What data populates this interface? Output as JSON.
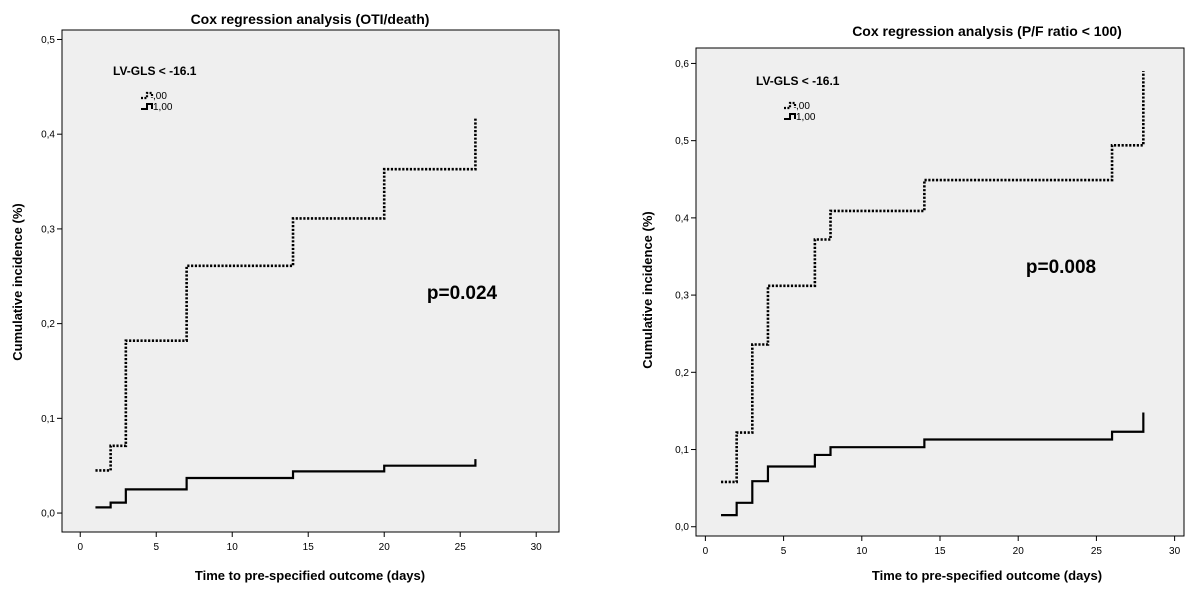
{
  "chart_data": [
    {
      "type": "line",
      "title": "Cox regression analysis (OTI/death)",
      "xlabel": "Time to pre-specified outcome (days)",
      "ylabel": "Cumulative incidence (%)",
      "xlim": [
        -1.2,
        31.5
      ],
      "ylim": [
        -0.02,
        0.51
      ],
      "x_ticks": [
        0,
        5,
        10,
        15,
        20,
        25,
        30
      ],
      "y_ticks": [
        0.0,
        0.1,
        0.2,
        0.3,
        0.4,
        0.5
      ],
      "x_tick_labels": [
        "0",
        "5",
        "10",
        "15",
        "20",
        "25",
        "30"
      ],
      "y_tick_labels": [
        "0,0",
        "0,1",
        "0,2",
        "0,3",
        "0,4",
        "0,5"
      ],
      "grid": false,
      "legend": {
        "title": "LV-GLS < -16.1",
        "position": "top-left",
        "entries": [
          ",00",
          "1,00"
        ]
      },
      "annotation": "p=0.024",
      "series": [
        {
          "name": ",00",
          "style": "dotted",
          "x": [
            1,
            2,
            2.4,
            3,
            7,
            14,
            20,
            26
          ],
          "y": [
            0.045,
            0.071,
            0.071,
            0.182,
            0.261,
            0.311,
            0.363,
            0.418
          ]
        },
        {
          "name": "1,00",
          "style": "solid",
          "x": [
            1,
            2,
            3,
            7,
            14,
            20,
            26
          ],
          "y": [
            0.006,
            0.011,
            0.025,
            0.037,
            0.044,
            0.05,
            0.057
          ]
        }
      ]
    },
    {
      "type": "line",
      "title": "Cox regression analysis (P/F ratio < 100)",
      "xlabel": "Time to pre-specified outcome (days)",
      "ylabel": "Cumulative incidence (%)",
      "xlim": [
        -0.6,
        30.6
      ],
      "ylim": [
        -0.012,
        0.62
      ],
      "x_ticks": [
        0,
        5,
        10,
        15,
        20,
        25,
        30
      ],
      "y_ticks": [
        0.0,
        0.1,
        0.2,
        0.3,
        0.4,
        0.5,
        0.6
      ],
      "x_tick_labels": [
        "0",
        "5",
        "10",
        "15",
        "20",
        "25",
        "30"
      ],
      "y_tick_labels": [
        "0,0",
        "0,1",
        "0,2",
        "0,3",
        "0,4",
        "0,5",
        "0,6"
      ],
      "grid": false,
      "legend": {
        "title": "LV-GLS < -16.1",
        "position": "top-left",
        "entries": [
          ",00",
          "1,00"
        ]
      },
      "annotation": "p=0.008",
      "series": [
        {
          "name": ",00",
          "style": "dotted",
          "x": [
            1,
            2,
            3,
            3.5,
            4,
            7,
            7.5,
            8,
            14,
            26,
            28
          ],
          "y": [
            0.058,
            0.122,
            0.236,
            0.236,
            0.312,
            0.372,
            0.372,
            0.409,
            0.449,
            0.494,
            0.59
          ]
        },
        {
          "name": "1,00",
          "style": "solid",
          "x": [
            1,
            2,
            3,
            4,
            7,
            7.5,
            8,
            14,
            26,
            28
          ],
          "y": [
            0.015,
            0.031,
            0.059,
            0.078,
            0.093,
            0.093,
            0.103,
            0.113,
            0.123,
            0.148
          ]
        }
      ]
    }
  ]
}
